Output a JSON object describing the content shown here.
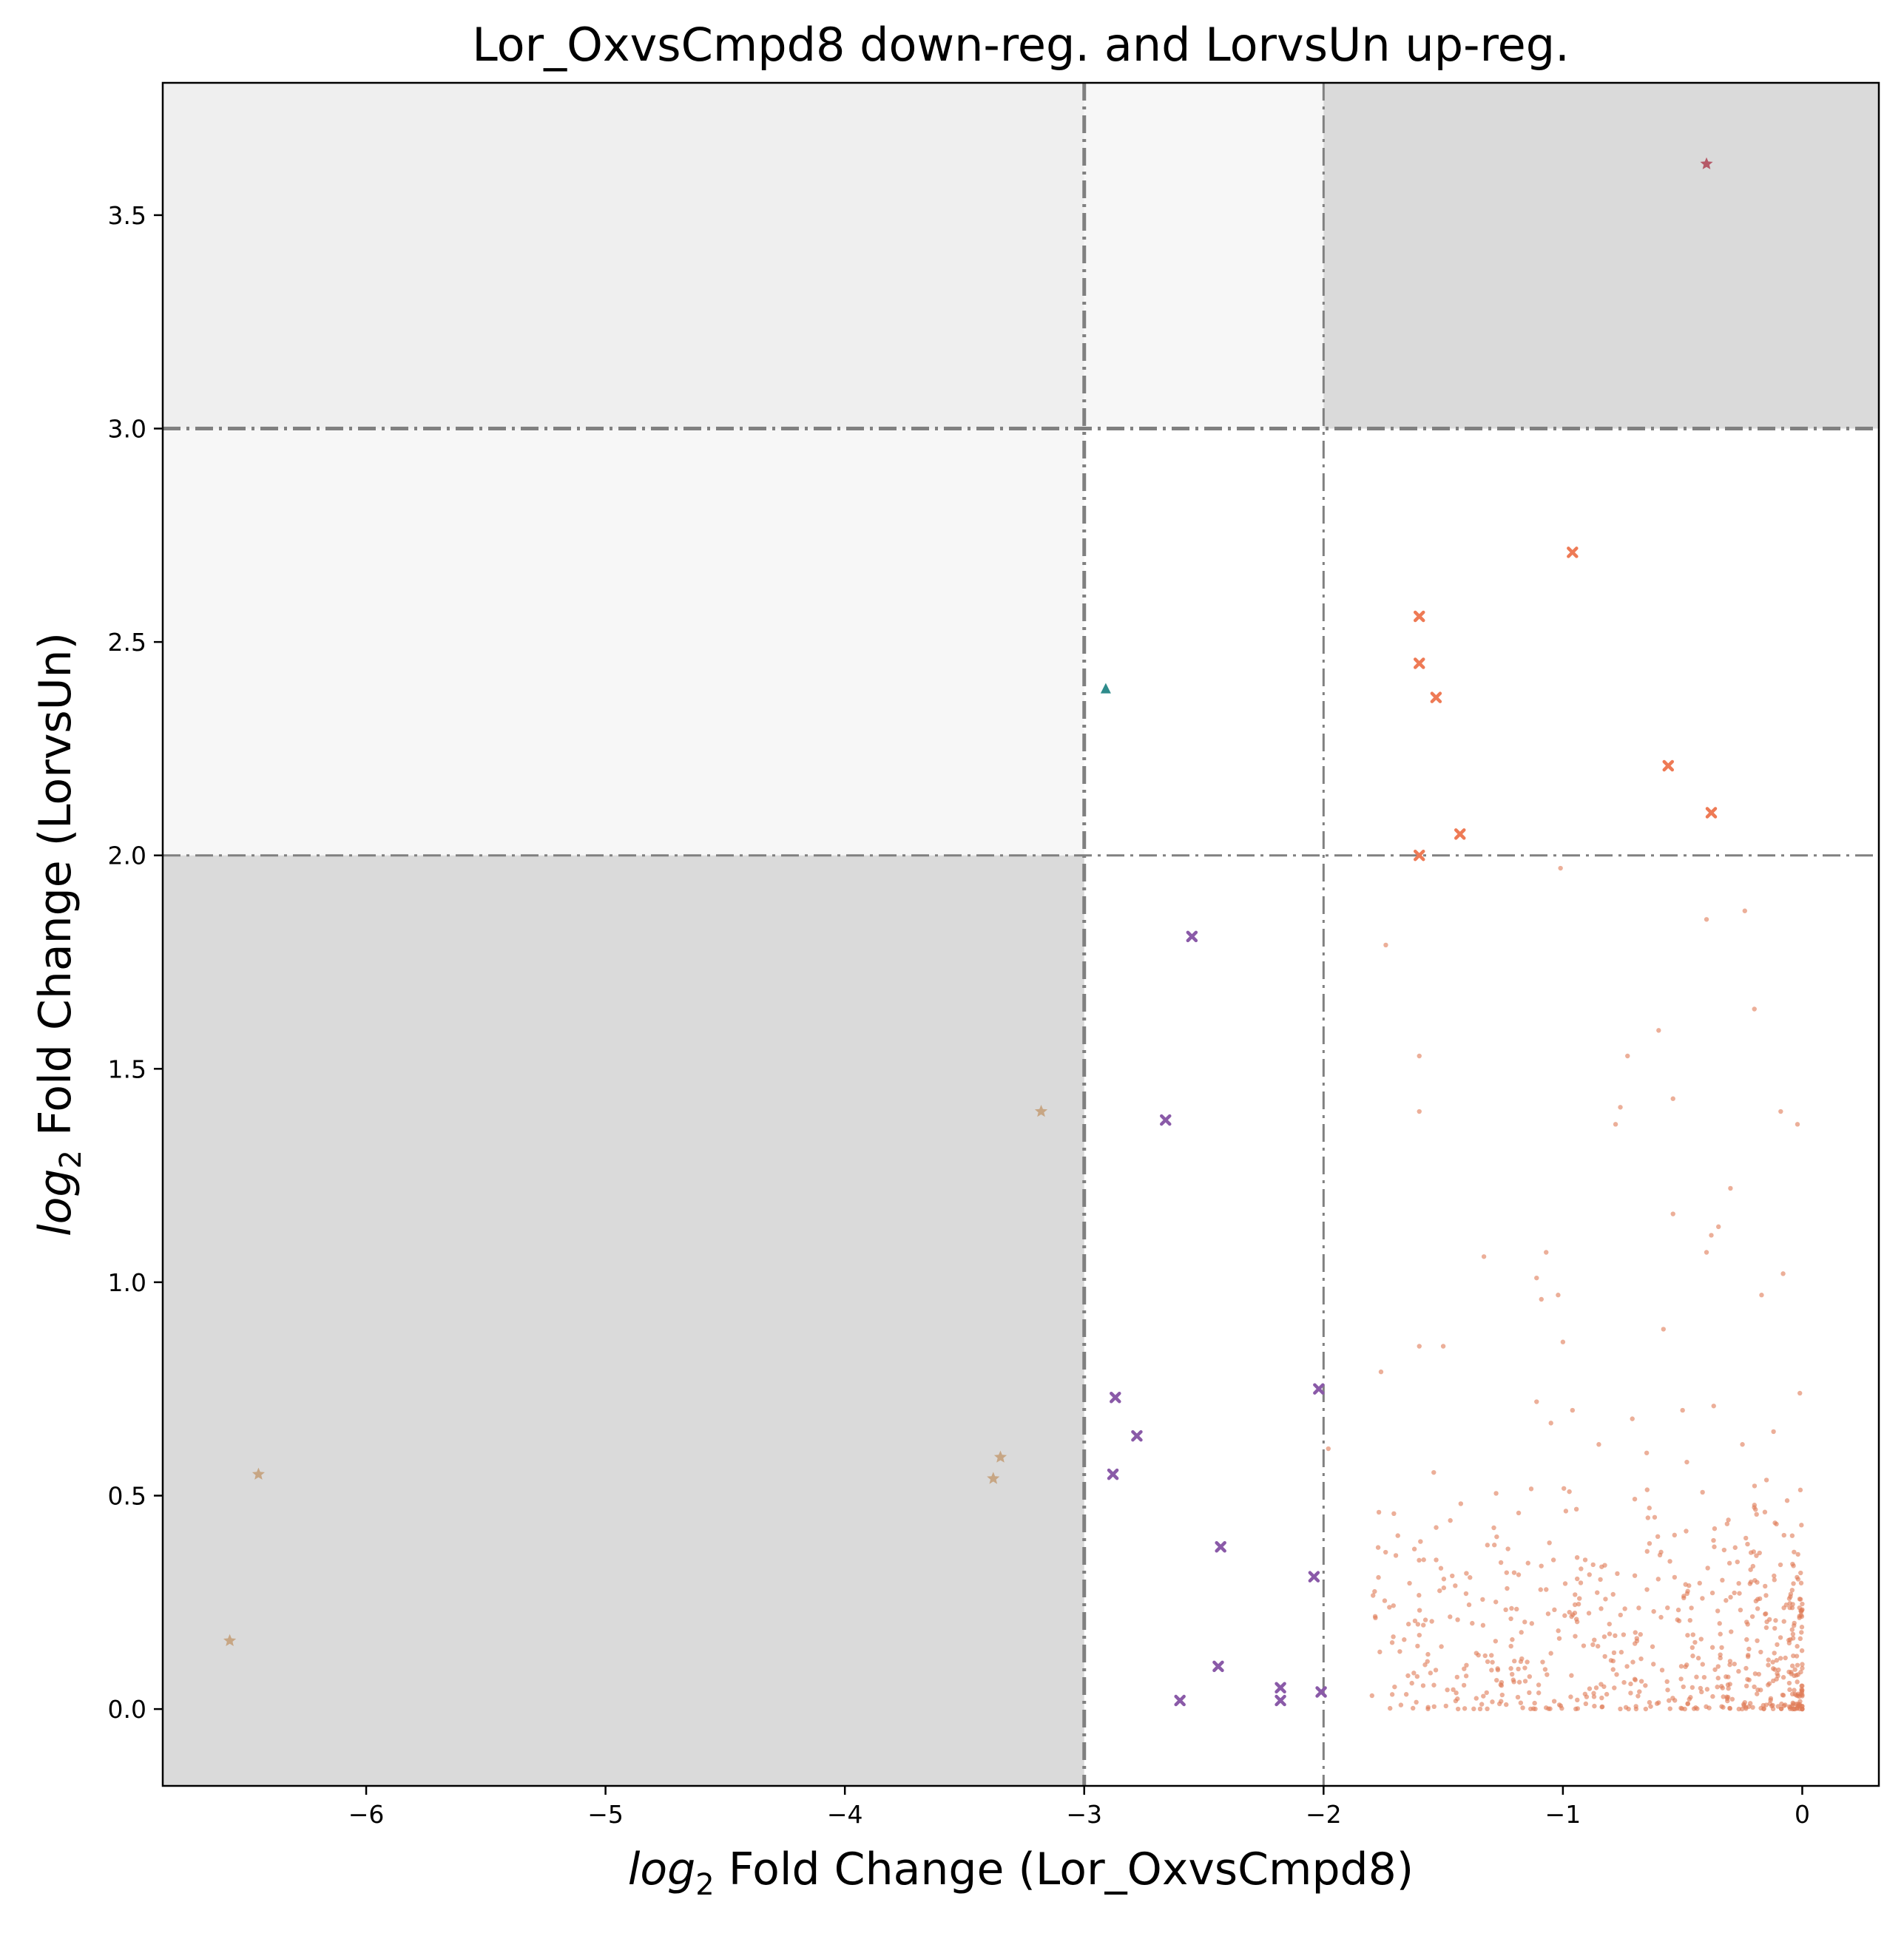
{
  "chart_data": {
    "type": "scatter",
    "title": "Lor_OxvsCmpd8 down-reg. and LorvsUn up-reg.",
    "xlabel": {
      "prefix": "log",
      "sub": "2",
      "rest": " Fold Change (Lor_OxvsCmpd8)"
    },
    "ylabel": {
      "prefix": "log",
      "sub": "2",
      "rest": " Fold Change (LorvsUn)"
    },
    "xlim": [
      -6.85,
      0.32
    ],
    "ylim": [
      -0.18,
      3.81
    ],
    "xticks": [
      -6,
      -5,
      -4,
      -3,
      -2,
      -1,
      0
    ],
    "xtick_labels": [
      "−6",
      "−5",
      "−4",
      "−3",
      "−2",
      "−1",
      "0"
    ],
    "yticks": [
      0.0,
      0.5,
      1.0,
      1.5,
      2.0,
      2.5,
      3.0,
      3.5
    ],
    "ytick_labels": [
      "0.0",
      "0.5",
      "1.0",
      "1.5",
      "2.0",
      "2.5",
      "3.0",
      "3.5"
    ],
    "grid": false,
    "thresholds": {
      "x": [
        -3,
        -2
      ],
      "y": [
        2,
        3
      ]
    },
    "shaded_regions": [
      {
        "x": [
          -6.85,
          -3
        ],
        "y": [
          3,
          3.81
        ],
        "color": "#efefef"
      },
      {
        "x": [
          -3,
          -2
        ],
        "y": [
          3,
          3.81
        ],
        "color": "#f7f7f7"
      },
      {
        "x": [
          -2,
          0.32
        ],
        "y": [
          3,
          3.81
        ],
        "color": "#dadada"
      },
      {
        "x": [
          -6.85,
          -3
        ],
        "y": [
          2,
          3
        ],
        "color": "#f7f7f7"
      },
      {
        "x": [
          -6.85,
          -3
        ],
        "y": [
          -0.18,
          2
        ],
        "color": "#dadada"
      }
    ],
    "series": [
      {
        "marker": "star",
        "color": "#b04a5a",
        "points": [
          [
            -0.4,
            3.62
          ]
        ]
      },
      {
        "marker": "triangle",
        "color": "#2e8b8b",
        "points": [
          [
            -2.91,
            2.39
          ]
        ]
      },
      {
        "marker": "x",
        "color": "#ee7a55",
        "points": [
          [
            -0.96,
            2.71
          ],
          [
            -1.6,
            2.56
          ],
          [
            -1.6,
            2.45
          ],
          [
            -1.53,
            2.37
          ],
          [
            -0.56,
            2.21
          ],
          [
            -0.38,
            2.1
          ],
          [
            -1.43,
            2.05
          ],
          [
            -1.6,
            2.0
          ]
        ]
      },
      {
        "marker": "x",
        "color": "#8a5aa8",
        "points": [
          [
            -2.55,
            1.81
          ],
          [
            -2.66,
            1.38
          ],
          [
            -2.02,
            0.75
          ],
          [
            -2.87,
            0.73
          ],
          [
            -2.78,
            0.64
          ],
          [
            -2.88,
            0.55
          ],
          [
            -2.43,
            0.38
          ],
          [
            -2.04,
            0.31
          ],
          [
            -2.44,
            0.1
          ],
          [
            -2.18,
            0.05
          ],
          [
            -2.6,
            0.02
          ],
          [
            -2.18,
            0.02
          ],
          [
            -2.01,
            0.04
          ]
        ]
      },
      {
        "marker": "star",
        "color": "#c4a07a",
        "points": [
          [
            -3.18,
            1.4
          ],
          [
            -6.45,
            0.55
          ],
          [
            -3.35,
            0.59
          ],
          [
            -3.38,
            0.54
          ],
          [
            -6.57,
            0.16
          ]
        ]
      },
      {
        "marker": "dot",
        "color": "#e07a55",
        "points": [
          [
            -1.01,
            1.97
          ],
          [
            -0.24,
            1.87
          ],
          [
            -0.4,
            1.85
          ],
          [
            -1.74,
            1.79
          ],
          [
            -0.2,
            1.64
          ],
          [
            -0.6,
            1.59
          ],
          [
            -1.6,
            1.53
          ],
          [
            -0.73,
            1.53
          ],
          [
            -0.54,
            1.43
          ],
          [
            -0.76,
            1.41
          ],
          [
            -1.6,
            1.4
          ],
          [
            -0.78,
            1.37
          ],
          [
            -0.09,
            1.4
          ],
          [
            -0.02,
            1.37
          ],
          [
            -0.3,
            1.22
          ],
          [
            -0.54,
            1.16
          ],
          [
            -0.35,
            1.13
          ],
          [
            -0.38,
            1.11
          ],
          [
            -0.4,
            1.07
          ],
          [
            -1.33,
            1.06
          ],
          [
            -1.07,
            1.07
          ],
          [
            -0.08,
            1.02
          ],
          [
            -1.11,
            1.01
          ],
          [
            -0.17,
            0.97
          ],
          [
            -1.02,
            0.97
          ],
          [
            -1.09,
            0.96
          ],
          [
            -0.58,
            0.89
          ],
          [
            -1.6,
            0.85
          ],
          [
            -1.5,
            0.85
          ],
          [
            -1.0,
            0.86
          ],
          [
            -1.76,
            0.79
          ],
          [
            -1.11,
            0.72
          ],
          [
            -0.96,
            0.7
          ],
          [
            -0.37,
            0.71
          ],
          [
            -0.71,
            0.68
          ],
          [
            -0.5,
            0.7
          ],
          [
            -1.05,
            0.67
          ],
          [
            -0.01,
            0.74
          ],
          [
            -0.12,
            0.65
          ],
          [
            -0.85,
            0.62
          ],
          [
            -1.98,
            0.61
          ],
          [
            -0.65,
            0.6
          ],
          [
            -0.25,
            0.62
          ]
        ]
      }
    ],
    "dense_cluster": {
      "color": "#e07a55",
      "x": [
        -1.8,
        0.0
      ],
      "y": [
        0.0,
        0.6
      ],
      "count": 620
    }
  }
}
